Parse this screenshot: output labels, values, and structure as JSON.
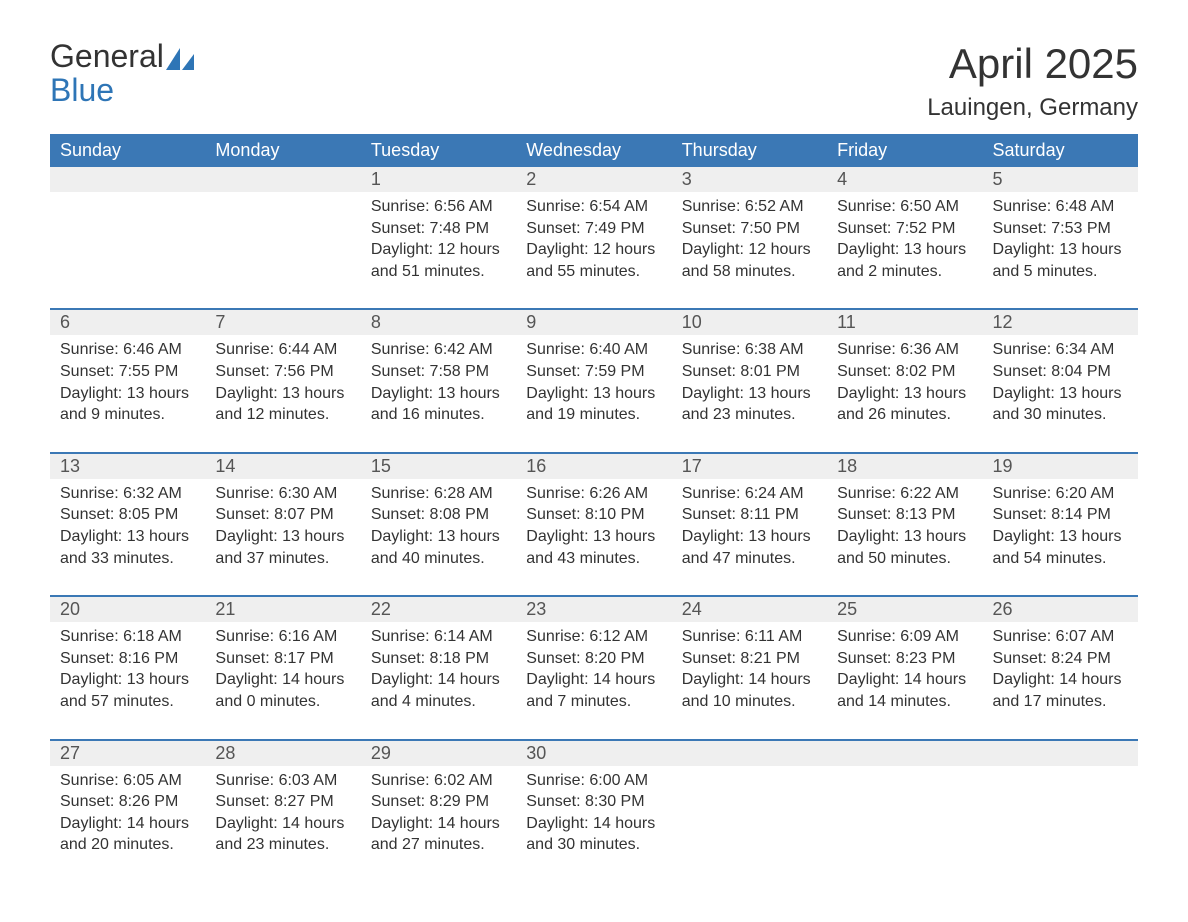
{
  "brand": {
    "word1": "General",
    "word2": "Blue",
    "accent_color": "#2e75b6",
    "text_color": "#333333"
  },
  "title": "April 2025",
  "location": "Lauingen, Germany",
  "colors": {
    "header_bg": "#3b78b5",
    "header_text": "#ffffff",
    "daynum_bg": "#efefef",
    "daynum_text": "#555555",
    "body_text": "#333333",
    "week_separator": "#3b78b5",
    "page_bg": "#ffffff"
  },
  "typography": {
    "title_fontsize": 42,
    "location_fontsize": 24,
    "dayheader_fontsize": 18,
    "daynum_fontsize": 18,
    "body_fontsize": 16,
    "font_family": "Arial, Helvetica, sans-serif"
  },
  "day_headers": [
    "Sunday",
    "Monday",
    "Tuesday",
    "Wednesday",
    "Thursday",
    "Friday",
    "Saturday"
  ],
  "weeks": [
    [
      null,
      null,
      {
        "n": "1",
        "sunrise": "Sunrise: 6:56 AM",
        "sunset": "Sunset: 7:48 PM",
        "day1": "Daylight: 12 hours",
        "day2": "and 51 minutes."
      },
      {
        "n": "2",
        "sunrise": "Sunrise: 6:54 AM",
        "sunset": "Sunset: 7:49 PM",
        "day1": "Daylight: 12 hours",
        "day2": "and 55 minutes."
      },
      {
        "n": "3",
        "sunrise": "Sunrise: 6:52 AM",
        "sunset": "Sunset: 7:50 PM",
        "day1": "Daylight: 12 hours",
        "day2": "and 58 minutes."
      },
      {
        "n": "4",
        "sunrise": "Sunrise: 6:50 AM",
        "sunset": "Sunset: 7:52 PM",
        "day1": "Daylight: 13 hours",
        "day2": "and 2 minutes."
      },
      {
        "n": "5",
        "sunrise": "Sunrise: 6:48 AM",
        "sunset": "Sunset: 7:53 PM",
        "day1": "Daylight: 13 hours",
        "day2": "and 5 minutes."
      }
    ],
    [
      {
        "n": "6",
        "sunrise": "Sunrise: 6:46 AM",
        "sunset": "Sunset: 7:55 PM",
        "day1": "Daylight: 13 hours",
        "day2": "and 9 minutes."
      },
      {
        "n": "7",
        "sunrise": "Sunrise: 6:44 AM",
        "sunset": "Sunset: 7:56 PM",
        "day1": "Daylight: 13 hours",
        "day2": "and 12 minutes."
      },
      {
        "n": "8",
        "sunrise": "Sunrise: 6:42 AM",
        "sunset": "Sunset: 7:58 PM",
        "day1": "Daylight: 13 hours",
        "day2": "and 16 minutes."
      },
      {
        "n": "9",
        "sunrise": "Sunrise: 6:40 AM",
        "sunset": "Sunset: 7:59 PM",
        "day1": "Daylight: 13 hours",
        "day2": "and 19 minutes."
      },
      {
        "n": "10",
        "sunrise": "Sunrise: 6:38 AM",
        "sunset": "Sunset: 8:01 PM",
        "day1": "Daylight: 13 hours",
        "day2": "and 23 minutes."
      },
      {
        "n": "11",
        "sunrise": "Sunrise: 6:36 AM",
        "sunset": "Sunset: 8:02 PM",
        "day1": "Daylight: 13 hours",
        "day2": "and 26 minutes."
      },
      {
        "n": "12",
        "sunrise": "Sunrise: 6:34 AM",
        "sunset": "Sunset: 8:04 PM",
        "day1": "Daylight: 13 hours",
        "day2": "and 30 minutes."
      }
    ],
    [
      {
        "n": "13",
        "sunrise": "Sunrise: 6:32 AM",
        "sunset": "Sunset: 8:05 PM",
        "day1": "Daylight: 13 hours",
        "day2": "and 33 minutes."
      },
      {
        "n": "14",
        "sunrise": "Sunrise: 6:30 AM",
        "sunset": "Sunset: 8:07 PM",
        "day1": "Daylight: 13 hours",
        "day2": "and 37 minutes."
      },
      {
        "n": "15",
        "sunrise": "Sunrise: 6:28 AM",
        "sunset": "Sunset: 8:08 PM",
        "day1": "Daylight: 13 hours",
        "day2": "and 40 minutes."
      },
      {
        "n": "16",
        "sunrise": "Sunrise: 6:26 AM",
        "sunset": "Sunset: 8:10 PM",
        "day1": "Daylight: 13 hours",
        "day2": "and 43 minutes."
      },
      {
        "n": "17",
        "sunrise": "Sunrise: 6:24 AM",
        "sunset": "Sunset: 8:11 PM",
        "day1": "Daylight: 13 hours",
        "day2": "and 47 minutes."
      },
      {
        "n": "18",
        "sunrise": "Sunrise: 6:22 AM",
        "sunset": "Sunset: 8:13 PM",
        "day1": "Daylight: 13 hours",
        "day2": "and 50 minutes."
      },
      {
        "n": "19",
        "sunrise": "Sunrise: 6:20 AM",
        "sunset": "Sunset: 8:14 PM",
        "day1": "Daylight: 13 hours",
        "day2": "and 54 minutes."
      }
    ],
    [
      {
        "n": "20",
        "sunrise": "Sunrise: 6:18 AM",
        "sunset": "Sunset: 8:16 PM",
        "day1": "Daylight: 13 hours",
        "day2": "and 57 minutes."
      },
      {
        "n": "21",
        "sunrise": "Sunrise: 6:16 AM",
        "sunset": "Sunset: 8:17 PM",
        "day1": "Daylight: 14 hours",
        "day2": "and 0 minutes."
      },
      {
        "n": "22",
        "sunrise": "Sunrise: 6:14 AM",
        "sunset": "Sunset: 8:18 PM",
        "day1": "Daylight: 14 hours",
        "day2": "and 4 minutes."
      },
      {
        "n": "23",
        "sunrise": "Sunrise: 6:12 AM",
        "sunset": "Sunset: 8:20 PM",
        "day1": "Daylight: 14 hours",
        "day2": "and 7 minutes."
      },
      {
        "n": "24",
        "sunrise": "Sunrise: 6:11 AM",
        "sunset": "Sunset: 8:21 PM",
        "day1": "Daylight: 14 hours",
        "day2": "and 10 minutes."
      },
      {
        "n": "25",
        "sunrise": "Sunrise: 6:09 AM",
        "sunset": "Sunset: 8:23 PM",
        "day1": "Daylight: 14 hours",
        "day2": "and 14 minutes."
      },
      {
        "n": "26",
        "sunrise": "Sunrise: 6:07 AM",
        "sunset": "Sunset: 8:24 PM",
        "day1": "Daylight: 14 hours",
        "day2": "and 17 minutes."
      }
    ],
    [
      {
        "n": "27",
        "sunrise": "Sunrise: 6:05 AM",
        "sunset": "Sunset: 8:26 PM",
        "day1": "Daylight: 14 hours",
        "day2": "and 20 minutes."
      },
      {
        "n": "28",
        "sunrise": "Sunrise: 6:03 AM",
        "sunset": "Sunset: 8:27 PM",
        "day1": "Daylight: 14 hours",
        "day2": "and 23 minutes."
      },
      {
        "n": "29",
        "sunrise": "Sunrise: 6:02 AM",
        "sunset": "Sunset: 8:29 PM",
        "day1": "Daylight: 14 hours",
        "day2": "and 27 minutes."
      },
      {
        "n": "30",
        "sunrise": "Sunrise: 6:00 AM",
        "sunset": "Sunset: 8:30 PM",
        "day1": "Daylight: 14 hours",
        "day2": "and 30 minutes."
      },
      null,
      null,
      null
    ]
  ]
}
